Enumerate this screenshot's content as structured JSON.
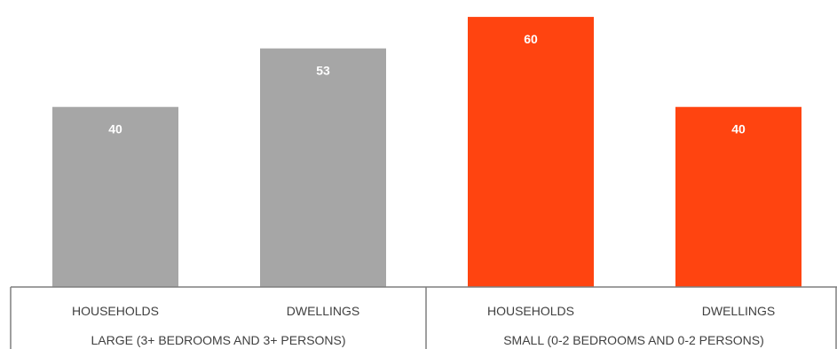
{
  "chart_data": {
    "type": "bar",
    "categories": [
      "HOUSEHOLDS",
      "DWELLINGS",
      "HOUSEHOLDS",
      "DWELLINGS"
    ],
    "groups": [
      {
        "label": "LARGE (3+ BEDROOMS AND  3+ PERSONS)",
        "color": "#a6a6a6",
        "categories": [
          "HOUSEHOLDS",
          "DWELLINGS"
        ],
        "values": [
          40,
          53
        ]
      },
      {
        "label": "SMALL (0-2 BEDROOMS AND 0-2 PERSONS)",
        "color": "#ff4410",
        "categories": [
          "HOUSEHOLDS",
          "DWELLINGS"
        ],
        "values": [
          60,
          40
        ]
      }
    ],
    "values": [
      40,
      53,
      60,
      40
    ],
    "data_labels": [
      "40",
      "53",
      "60",
      "40"
    ],
    "title": "",
    "xlabel": "",
    "ylabel": "",
    "ylim": [
      0,
      61
    ],
    "grid": false,
    "legend": "none"
  }
}
